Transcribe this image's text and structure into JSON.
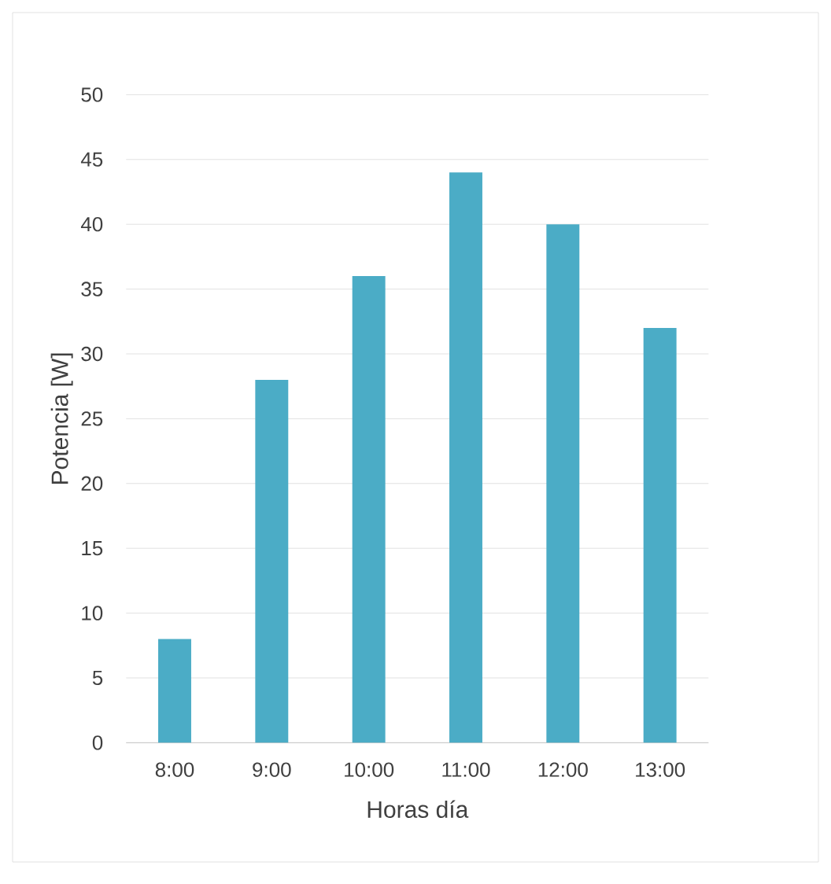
{
  "chart_data": {
    "type": "bar",
    "xlabel": "Horas día",
    "ylabel": "Potencia [W]",
    "categories": [
      "8:00",
      "9:00",
      "10:00",
      "11:00",
      "12:00",
      "13:00"
    ],
    "values": [
      8,
      28,
      36,
      44,
      40,
      32
    ],
    "color": "#4bacc6",
    "ylim": [
      0,
      50
    ],
    "yticks": [
      0,
      5,
      10,
      15,
      20,
      25,
      30,
      35,
      40,
      45,
      50
    ],
    "grid": "y"
  }
}
